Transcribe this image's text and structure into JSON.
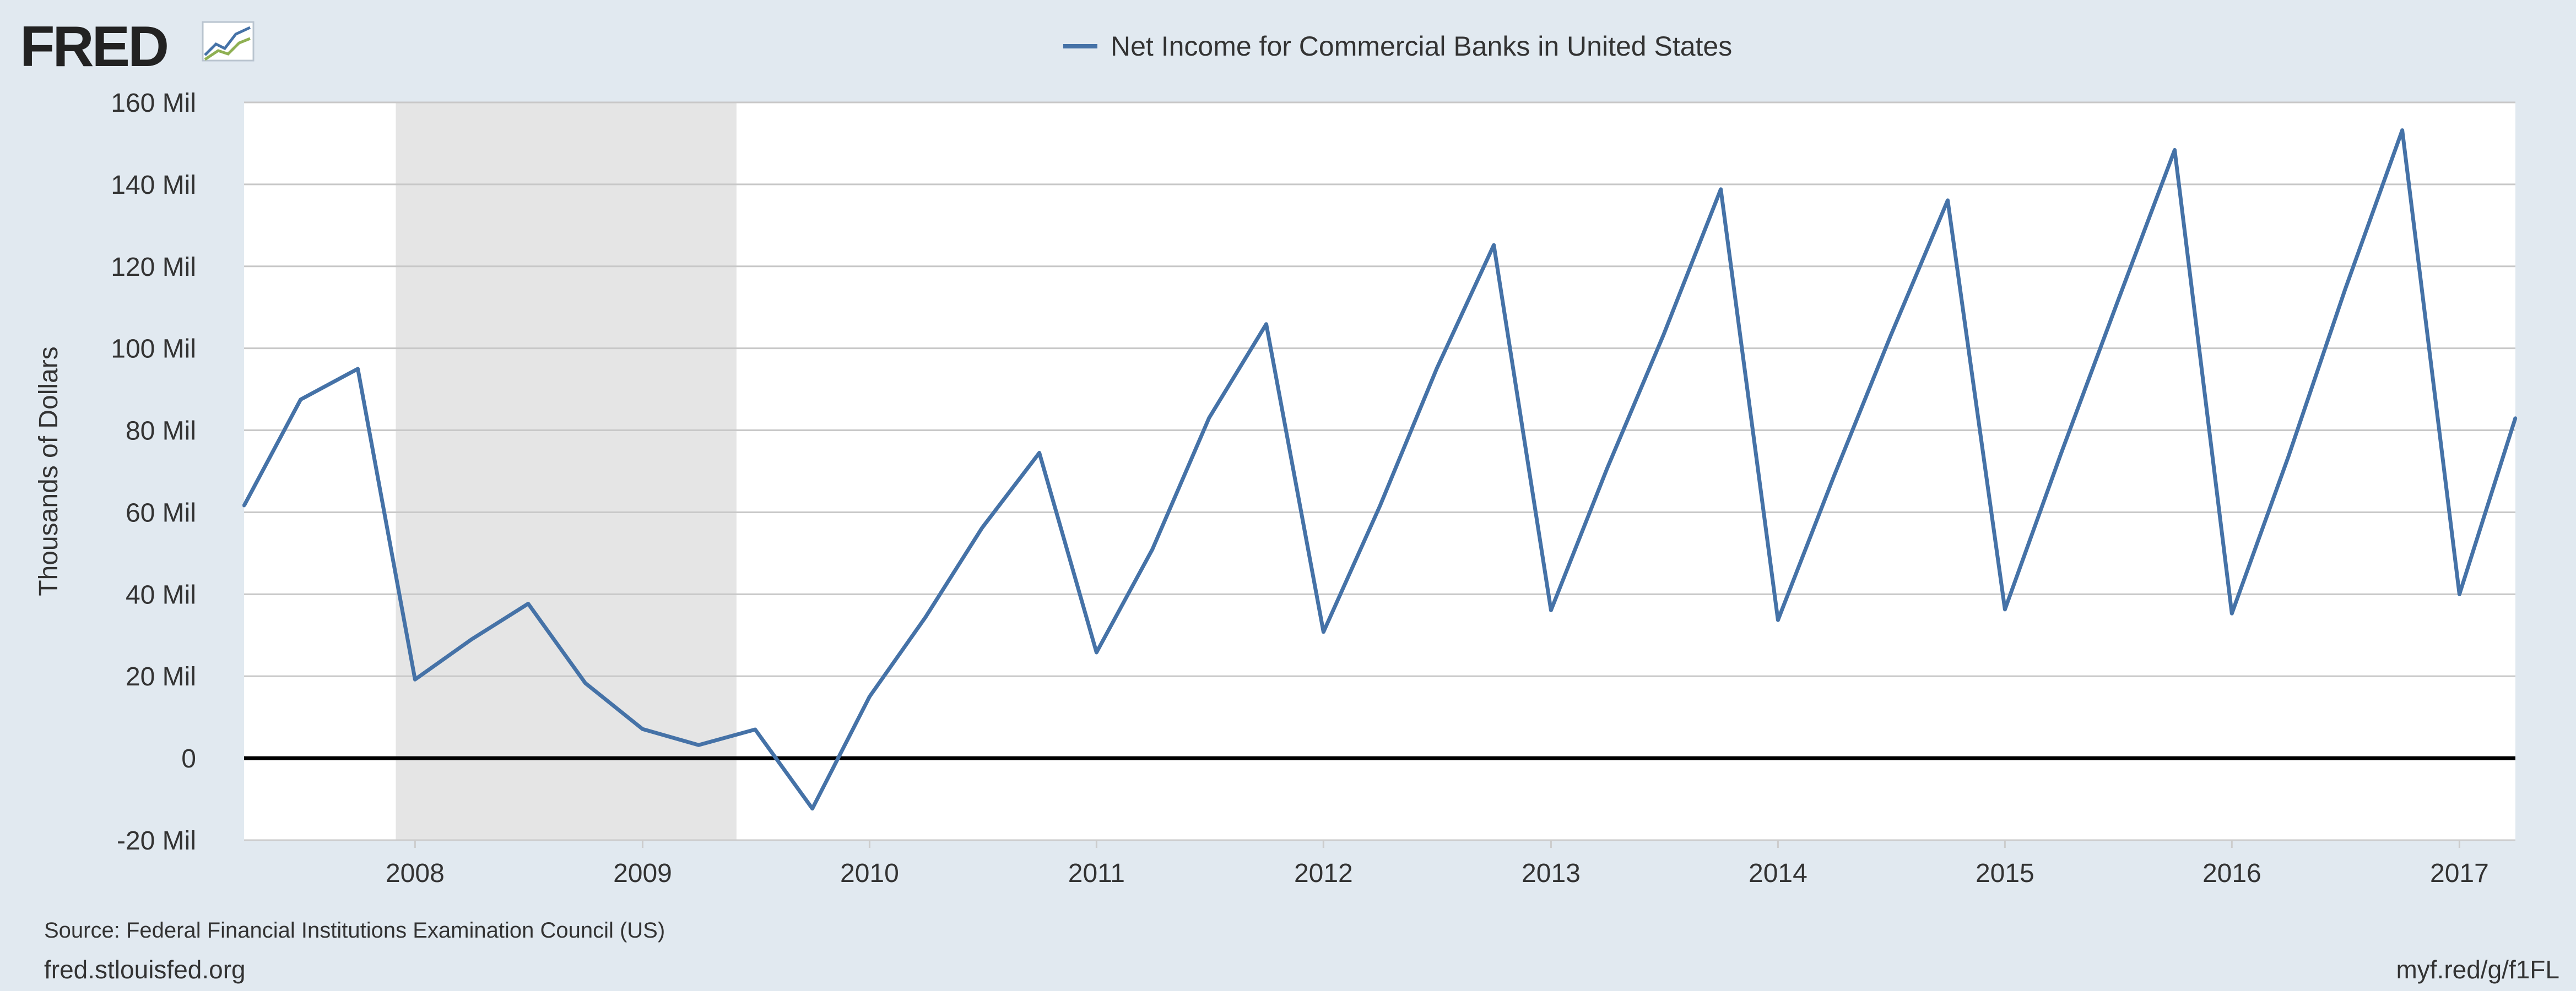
{
  "brand": {
    "logo_text": "FRED"
  },
  "footer": {
    "source": "Source: Federal Financial Institutions Examination Council (US)",
    "site": "fred.stlouisfed.org",
    "short_url": "myf.red/g/f1FL"
  },
  "colors": {
    "background": "#e1e9f0",
    "plot_background": "#ffffff",
    "series_line": "#4572a7",
    "recession_band": "#e5e5e5",
    "gridline": "#c8c8c8",
    "zero_line": "#000000"
  },
  "chart_data": {
    "type": "line",
    "title": "Net Income for Commercial Banks in United States",
    "xlabel": "",
    "ylabel": "Thousands of Dollars",
    "grid": true,
    "legend": "top-center",
    "ylim": [
      -20000000,
      160000000
    ],
    "xlim": [
      "2007-04-01",
      "2017-04-01"
    ],
    "y_ticks": [
      {
        "value": -20000000,
        "label": "-20 Mil"
      },
      {
        "value": 0,
        "label": "0"
      },
      {
        "value": 20000000,
        "label": "20 Mil"
      },
      {
        "value": 40000000,
        "label": "40 Mil"
      },
      {
        "value": 60000000,
        "label": "60 Mil"
      },
      {
        "value": 80000000,
        "label": "80 Mil"
      },
      {
        "value": 100000000,
        "label": "100 Mil"
      },
      {
        "value": 120000000,
        "label": "120 Mil"
      },
      {
        "value": 140000000,
        "label": "140 Mil"
      },
      {
        "value": 160000000,
        "label": "160 Mil"
      }
    ],
    "x_ticks": [
      {
        "value": "2008-01-01",
        "label": "2008"
      },
      {
        "value": "2009-01-01",
        "label": "2009"
      },
      {
        "value": "2010-01-01",
        "label": "2010"
      },
      {
        "value": "2011-01-01",
        "label": "2011"
      },
      {
        "value": "2012-01-01",
        "label": "2012"
      },
      {
        "value": "2013-01-01",
        "label": "2013"
      },
      {
        "value": "2014-01-01",
        "label": "2014"
      },
      {
        "value": "2015-01-01",
        "label": "2015"
      },
      {
        "value": "2016-01-01",
        "label": "2016"
      },
      {
        "value": "2017-01-01",
        "label": "2017"
      }
    ],
    "recessions": [
      {
        "start": "2007-12-01",
        "end": "2009-06-01"
      }
    ],
    "series": [
      {
        "name": "Net Income for Commercial Banks in United States",
        "points": [
          {
            "x": "2007-04-01",
            "y": 61600000
          },
          {
            "x": "2007-07-01",
            "y": 87500000
          },
          {
            "x": "2007-10-01",
            "y": 95000000
          },
          {
            "x": "2008-01-01",
            "y": 19200000
          },
          {
            "x": "2008-04-01",
            "y": 29000000
          },
          {
            "x": "2008-07-01",
            "y": 37700000
          },
          {
            "x": "2008-10-01",
            "y": 18300000
          },
          {
            "x": "2009-01-01",
            "y": 7100000
          },
          {
            "x": "2009-04-01",
            "y": 3200000
          },
          {
            "x": "2009-07-01",
            "y": 7000000
          },
          {
            "x": "2009-10-01",
            "y": -12300000
          },
          {
            "x": "2010-01-01",
            "y": 15000000
          },
          {
            "x": "2010-04-01",
            "y": 34400000
          },
          {
            "x": "2010-07-01",
            "y": 56200000
          },
          {
            "x": "2010-10-01",
            "y": 74500000
          },
          {
            "x": "2011-01-01",
            "y": 25800000
          },
          {
            "x": "2011-04-01",
            "y": 51000000
          },
          {
            "x": "2011-07-01",
            "y": 83000000
          },
          {
            "x": "2011-10-01",
            "y": 105900000
          },
          {
            "x": "2012-01-01",
            "y": 30800000
          },
          {
            "x": "2012-04-01",
            "y": 61600000
          },
          {
            "x": "2012-07-01",
            "y": 95000000
          },
          {
            "x": "2012-10-01",
            "y": 125200000
          },
          {
            "x": "2013-01-01",
            "y": 36100000
          },
          {
            "x": "2013-04-01",
            "y": 70600000
          },
          {
            "x": "2013-07-01",
            "y": 103300000
          },
          {
            "x": "2013-10-01",
            "y": 138800000
          },
          {
            "x": "2014-01-01",
            "y": 33700000
          },
          {
            "x": "2014-04-01",
            "y": 68800000
          },
          {
            "x": "2014-07-01",
            "y": 103000000
          },
          {
            "x": "2014-10-01",
            "y": 136100000
          },
          {
            "x": "2015-01-01",
            "y": 36300000
          },
          {
            "x": "2015-04-01",
            "y": 74200000
          },
          {
            "x": "2015-07-01",
            "y": 111300000
          },
          {
            "x": "2015-10-01",
            "y": 148400000
          },
          {
            "x": "2016-01-01",
            "y": 35300000
          },
          {
            "x": "2016-04-01",
            "y": 73600000
          },
          {
            "x": "2016-07-01",
            "y": 114300000
          },
          {
            "x": "2016-10-01",
            "y": 153200000
          },
          {
            "x": "2017-01-01",
            "y": 40000000
          },
          {
            "x": "2017-04-01",
            "y": 83000000
          }
        ]
      }
    ]
  }
}
